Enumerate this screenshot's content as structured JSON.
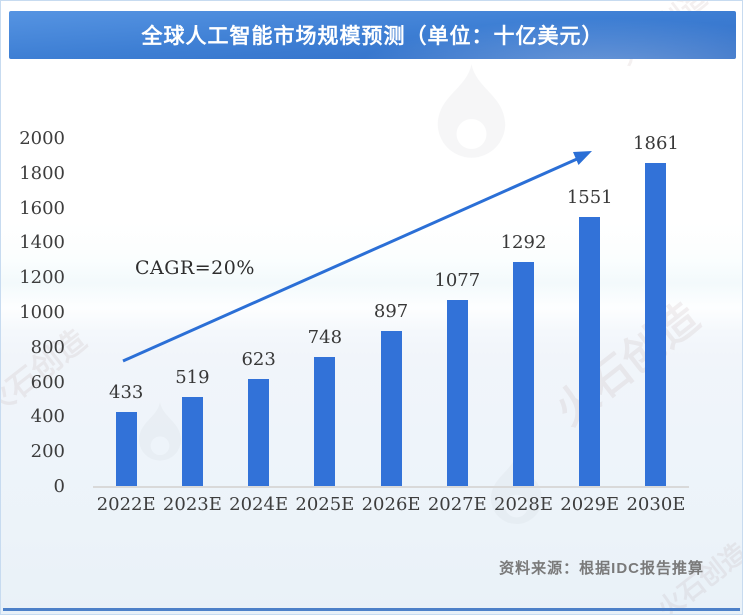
{
  "header": {
    "title": "全球人工智能市场规模预测（单位：十亿美元）"
  },
  "chart_data": {
    "type": "bar",
    "title": "全球人工智能市场规模预测（单位：十亿美元）",
    "unit": "十亿美元",
    "categories": [
      "2022E",
      "2023E",
      "2024E",
      "2025E",
      "2026E",
      "2027E",
      "2028E",
      "2029E",
      "2030E"
    ],
    "values": [
      433,
      519,
      623,
      748,
      897,
      1077,
      1292,
      1551,
      1861
    ],
    "y_ticks": [
      "2000",
      "1800",
      "1600",
      "1400",
      "1200",
      "1000",
      "800",
      "600",
      "400",
      "200",
      "0"
    ],
    "ylim": [
      0,
      2000
    ],
    "grid": false,
    "legend": "none",
    "annotation": "CAGR=20%",
    "bar_color": "#3272d8"
  },
  "annotation": {
    "cagr_label": "CAGR=20%"
  },
  "footer": {
    "source_text": "资料来源：根据IDC报告推算"
  },
  "watermark": {
    "brand_text": "火石创造"
  },
  "colors": {
    "bar": "#3272d8",
    "arrow": "#2b6fd6",
    "title_bar_top": "#5694e2",
    "title_bar_bottom": "#306dc6",
    "axis_line": "#d9d9d9",
    "bottom_accent": "#4d80c8"
  }
}
